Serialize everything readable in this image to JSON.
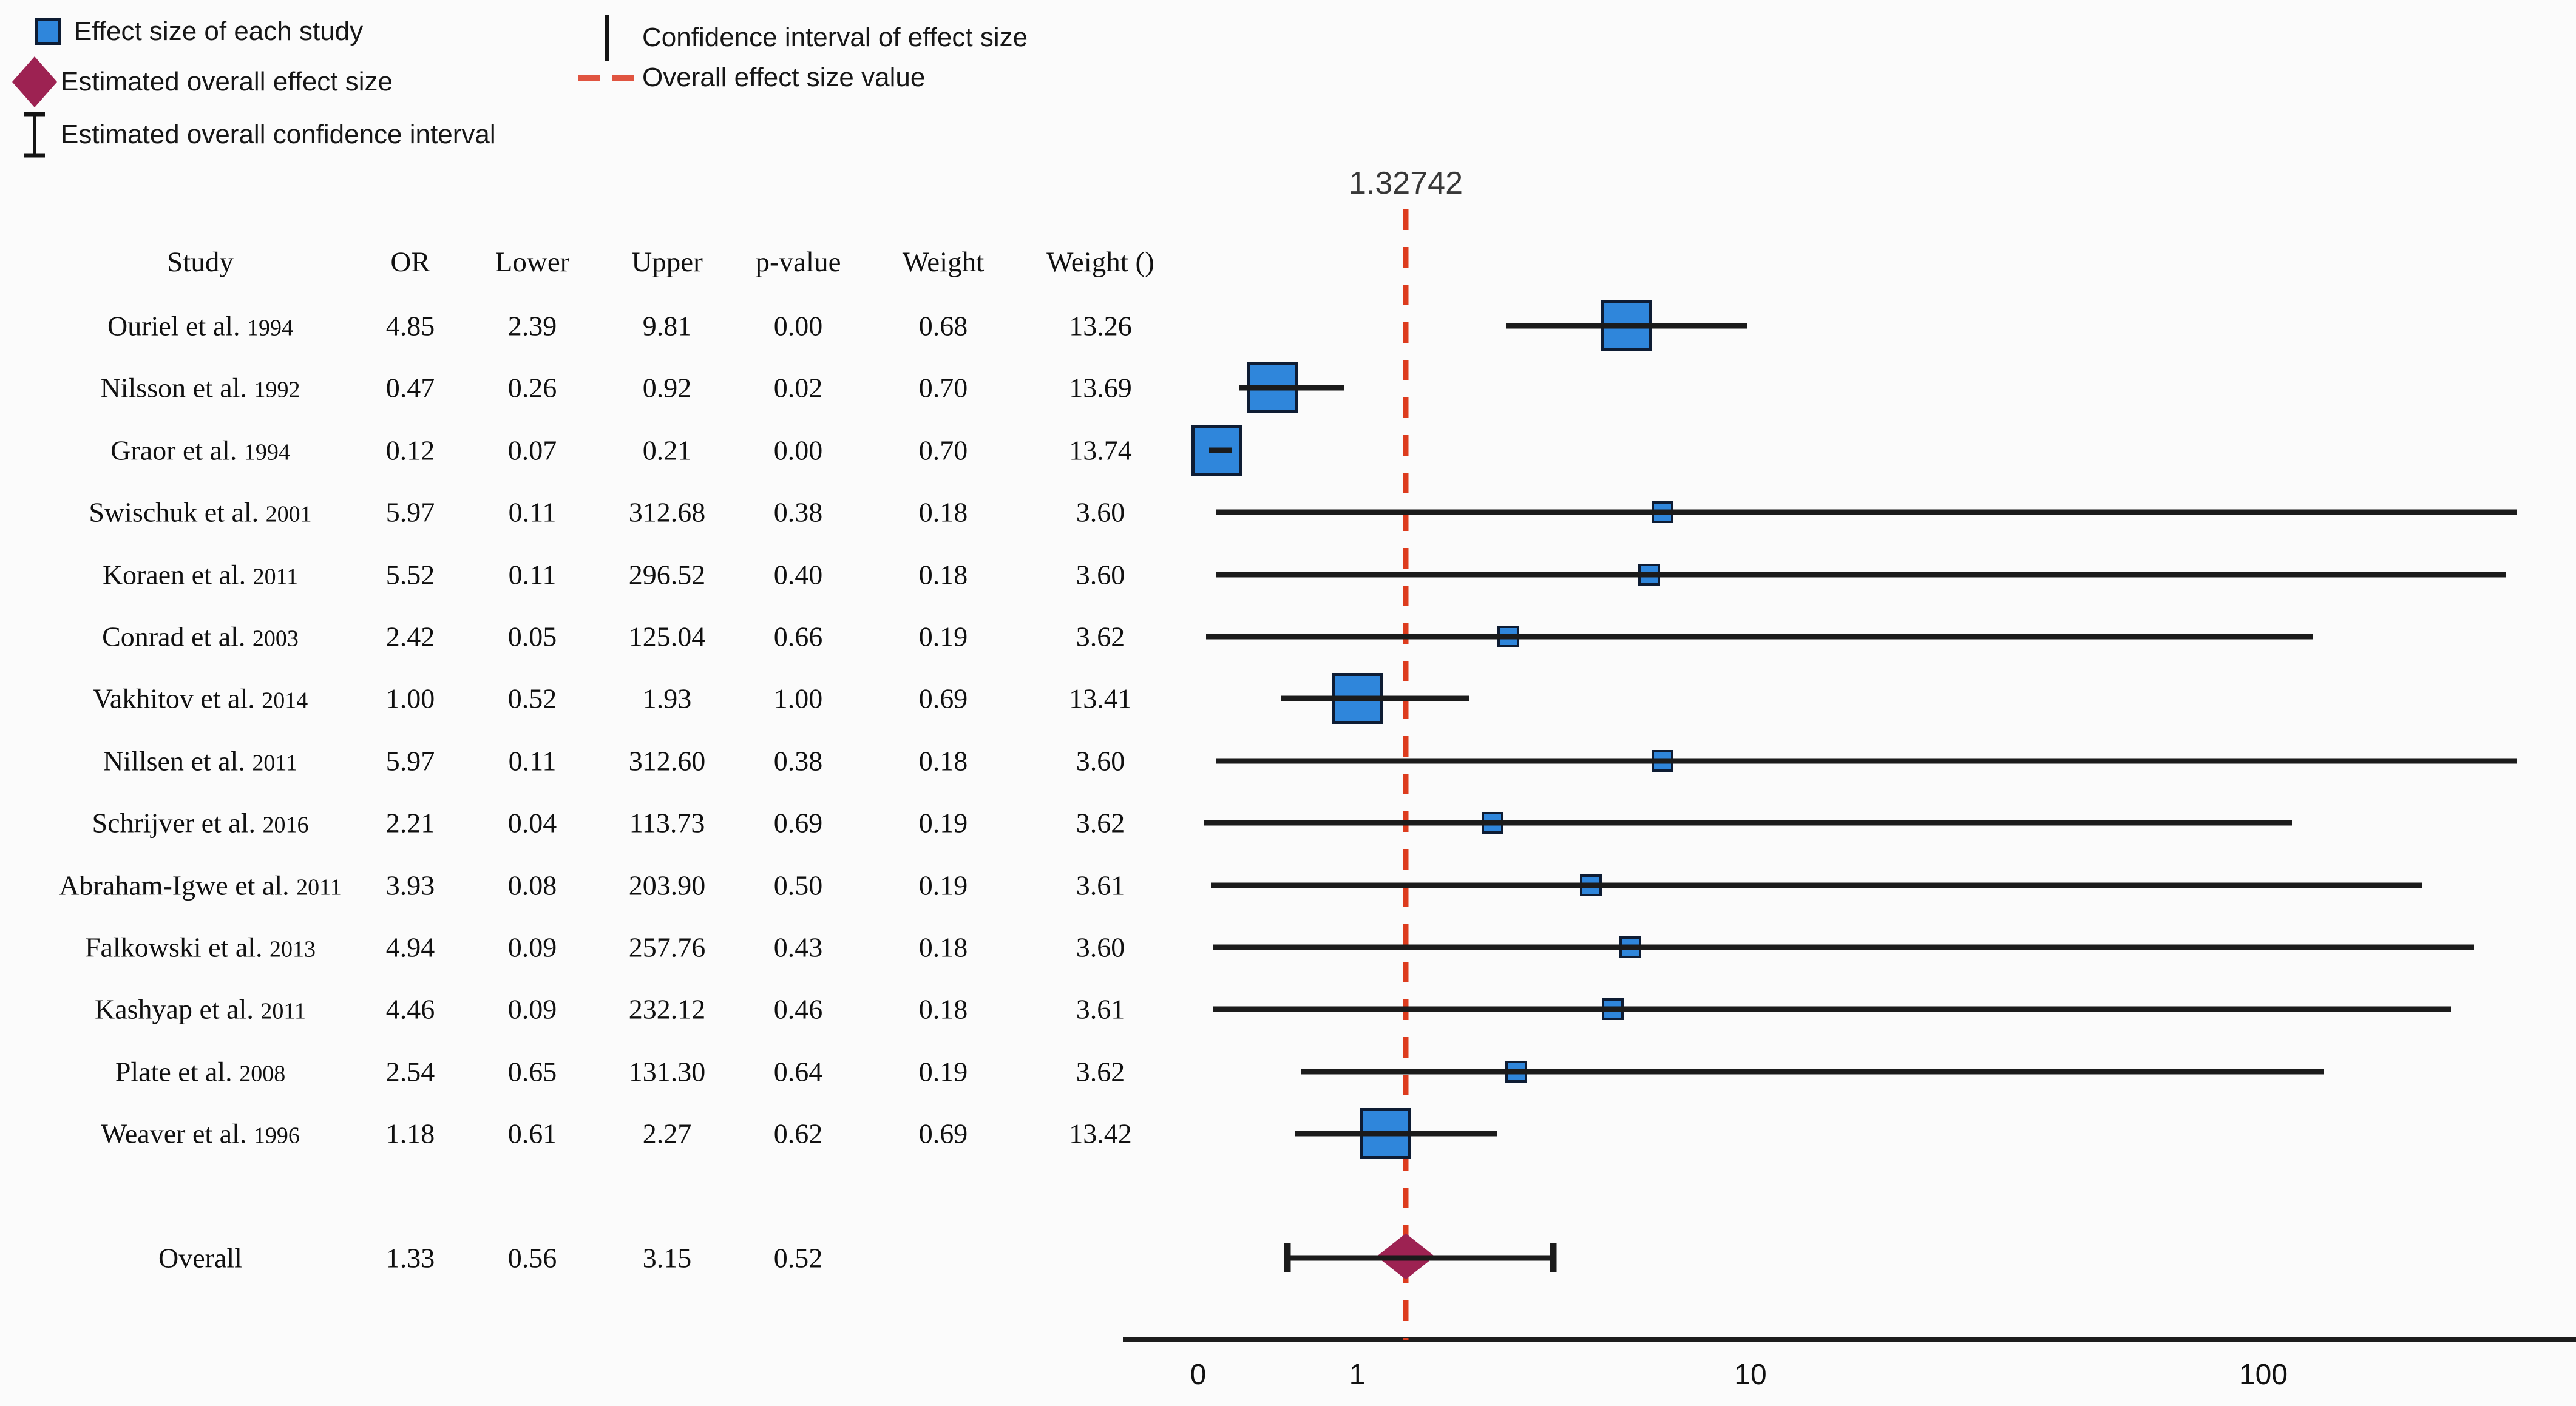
{
  "legend": {
    "left": [
      {
        "icon": "study-square-icon",
        "label": "Effect size of each study"
      },
      {
        "icon": "overall-diamond-icon",
        "label": "Estimated overall effect size"
      },
      {
        "icon": "overall-ci-icon",
        "label": "Estimated overall confidence interval"
      }
    ],
    "right": [
      {
        "icon": "ci-line-icon",
        "label": "Confidence interval of effect size"
      },
      {
        "icon": "dashed-line-icon",
        "label": "Overall effect size value"
      }
    ]
  },
  "overall_effect_label": "1.32742",
  "table": {
    "headers": [
      "Study",
      "OR",
      "Lower",
      "Upper",
      "p-value",
      "Weight",
      "Weight ()"
    ]
  },
  "chart_data": {
    "type": "forest",
    "x_axis": {
      "scale": "log-like",
      "ticks": [
        0,
        1,
        10,
        100
      ]
    },
    "overall_line_value": 1.32742,
    "studies": [
      {
        "study": "Ouriel et al.",
        "year": "1994",
        "or": 4.85,
        "lower": 2.39,
        "upper": 9.81,
        "p": 0.0,
        "weight": 0.68,
        "weight_pct": 13.26
      },
      {
        "study": "Nilsson et al.",
        "year": "1992",
        "or": 0.47,
        "lower": 0.26,
        "upper": 0.92,
        "p": 0.02,
        "weight": 0.7,
        "weight_pct": 13.69
      },
      {
        "study": "Graor et al.",
        "year": "1994",
        "or": 0.12,
        "lower": 0.07,
        "upper": 0.21,
        "p": 0.0,
        "weight": 0.7,
        "weight_pct": 13.74
      },
      {
        "study": "Swischuk et al.",
        "year": "2001",
        "or": 5.97,
        "lower": 0.11,
        "upper": 312.68,
        "p": 0.38,
        "weight": 0.18,
        "weight_pct": 3.6
      },
      {
        "study": "Koraen et al.",
        "year": "2011",
        "or": 5.52,
        "lower": 0.11,
        "upper": 296.52,
        "p": 0.4,
        "weight": 0.18,
        "weight_pct": 3.6
      },
      {
        "study": "Conrad et al.",
        "year": "2003",
        "or": 2.42,
        "lower": 0.05,
        "upper": 125.04,
        "p": 0.66,
        "weight": 0.19,
        "weight_pct": 3.62
      },
      {
        "study": "Vakhitov et al.",
        "year": "2014",
        "or": 1.0,
        "lower": 0.52,
        "upper": 1.93,
        "p": 1.0,
        "weight": 0.69,
        "weight_pct": 13.41
      },
      {
        "study": "Nillsen et al.",
        "year": "2011",
        "or": 5.97,
        "lower": 0.11,
        "upper": 312.6,
        "p": 0.38,
        "weight": 0.18,
        "weight_pct": 3.6
      },
      {
        "study": "Schrijver et al.",
        "year": "2016",
        "or": 2.21,
        "lower": 0.04,
        "upper": 113.73,
        "p": 0.69,
        "weight": 0.19,
        "weight_pct": 3.62
      },
      {
        "study": "Abraham-Igwe et al.",
        "year": "2011",
        "or": 3.93,
        "lower": 0.08,
        "upper": 203.9,
        "p": 0.5,
        "weight": 0.19,
        "weight_pct": 3.61
      },
      {
        "study": "Falkowski et al.",
        "year": "2013",
        "or": 4.94,
        "lower": 0.09,
        "upper": 257.76,
        "p": 0.43,
        "weight": 0.18,
        "weight_pct": 3.6
      },
      {
        "study": "Kashyap et al.",
        "year": "2011",
        "or": 4.46,
        "lower": 0.09,
        "upper": 232.12,
        "p": 0.46,
        "weight": 0.18,
        "weight_pct": 3.61
      },
      {
        "study": "Plate et al.",
        "year": "2008",
        "or": 2.54,
        "lower": 0.65,
        "upper": 131.3,
        "p": 0.64,
        "weight": 0.19,
        "weight_pct": 3.62
      },
      {
        "study": "Weaver et al.",
        "year": "1996",
        "or": 1.18,
        "lower": 0.61,
        "upper": 2.27,
        "p": 0.62,
        "weight": 0.69,
        "weight_pct": 13.42
      }
    ],
    "overall": {
      "label": "Overall",
      "or": 1.33,
      "lower": 0.56,
      "upper": 3.15,
      "p": 0.52
    }
  },
  "colors": {
    "square_fill": "#2f86db",
    "square_border": "#0e1c33",
    "diamond": "#9d2252",
    "ci_line": "#1b1b1b",
    "dashed_line": "#dd3c1e",
    "legend_dash": "#e05440"
  }
}
